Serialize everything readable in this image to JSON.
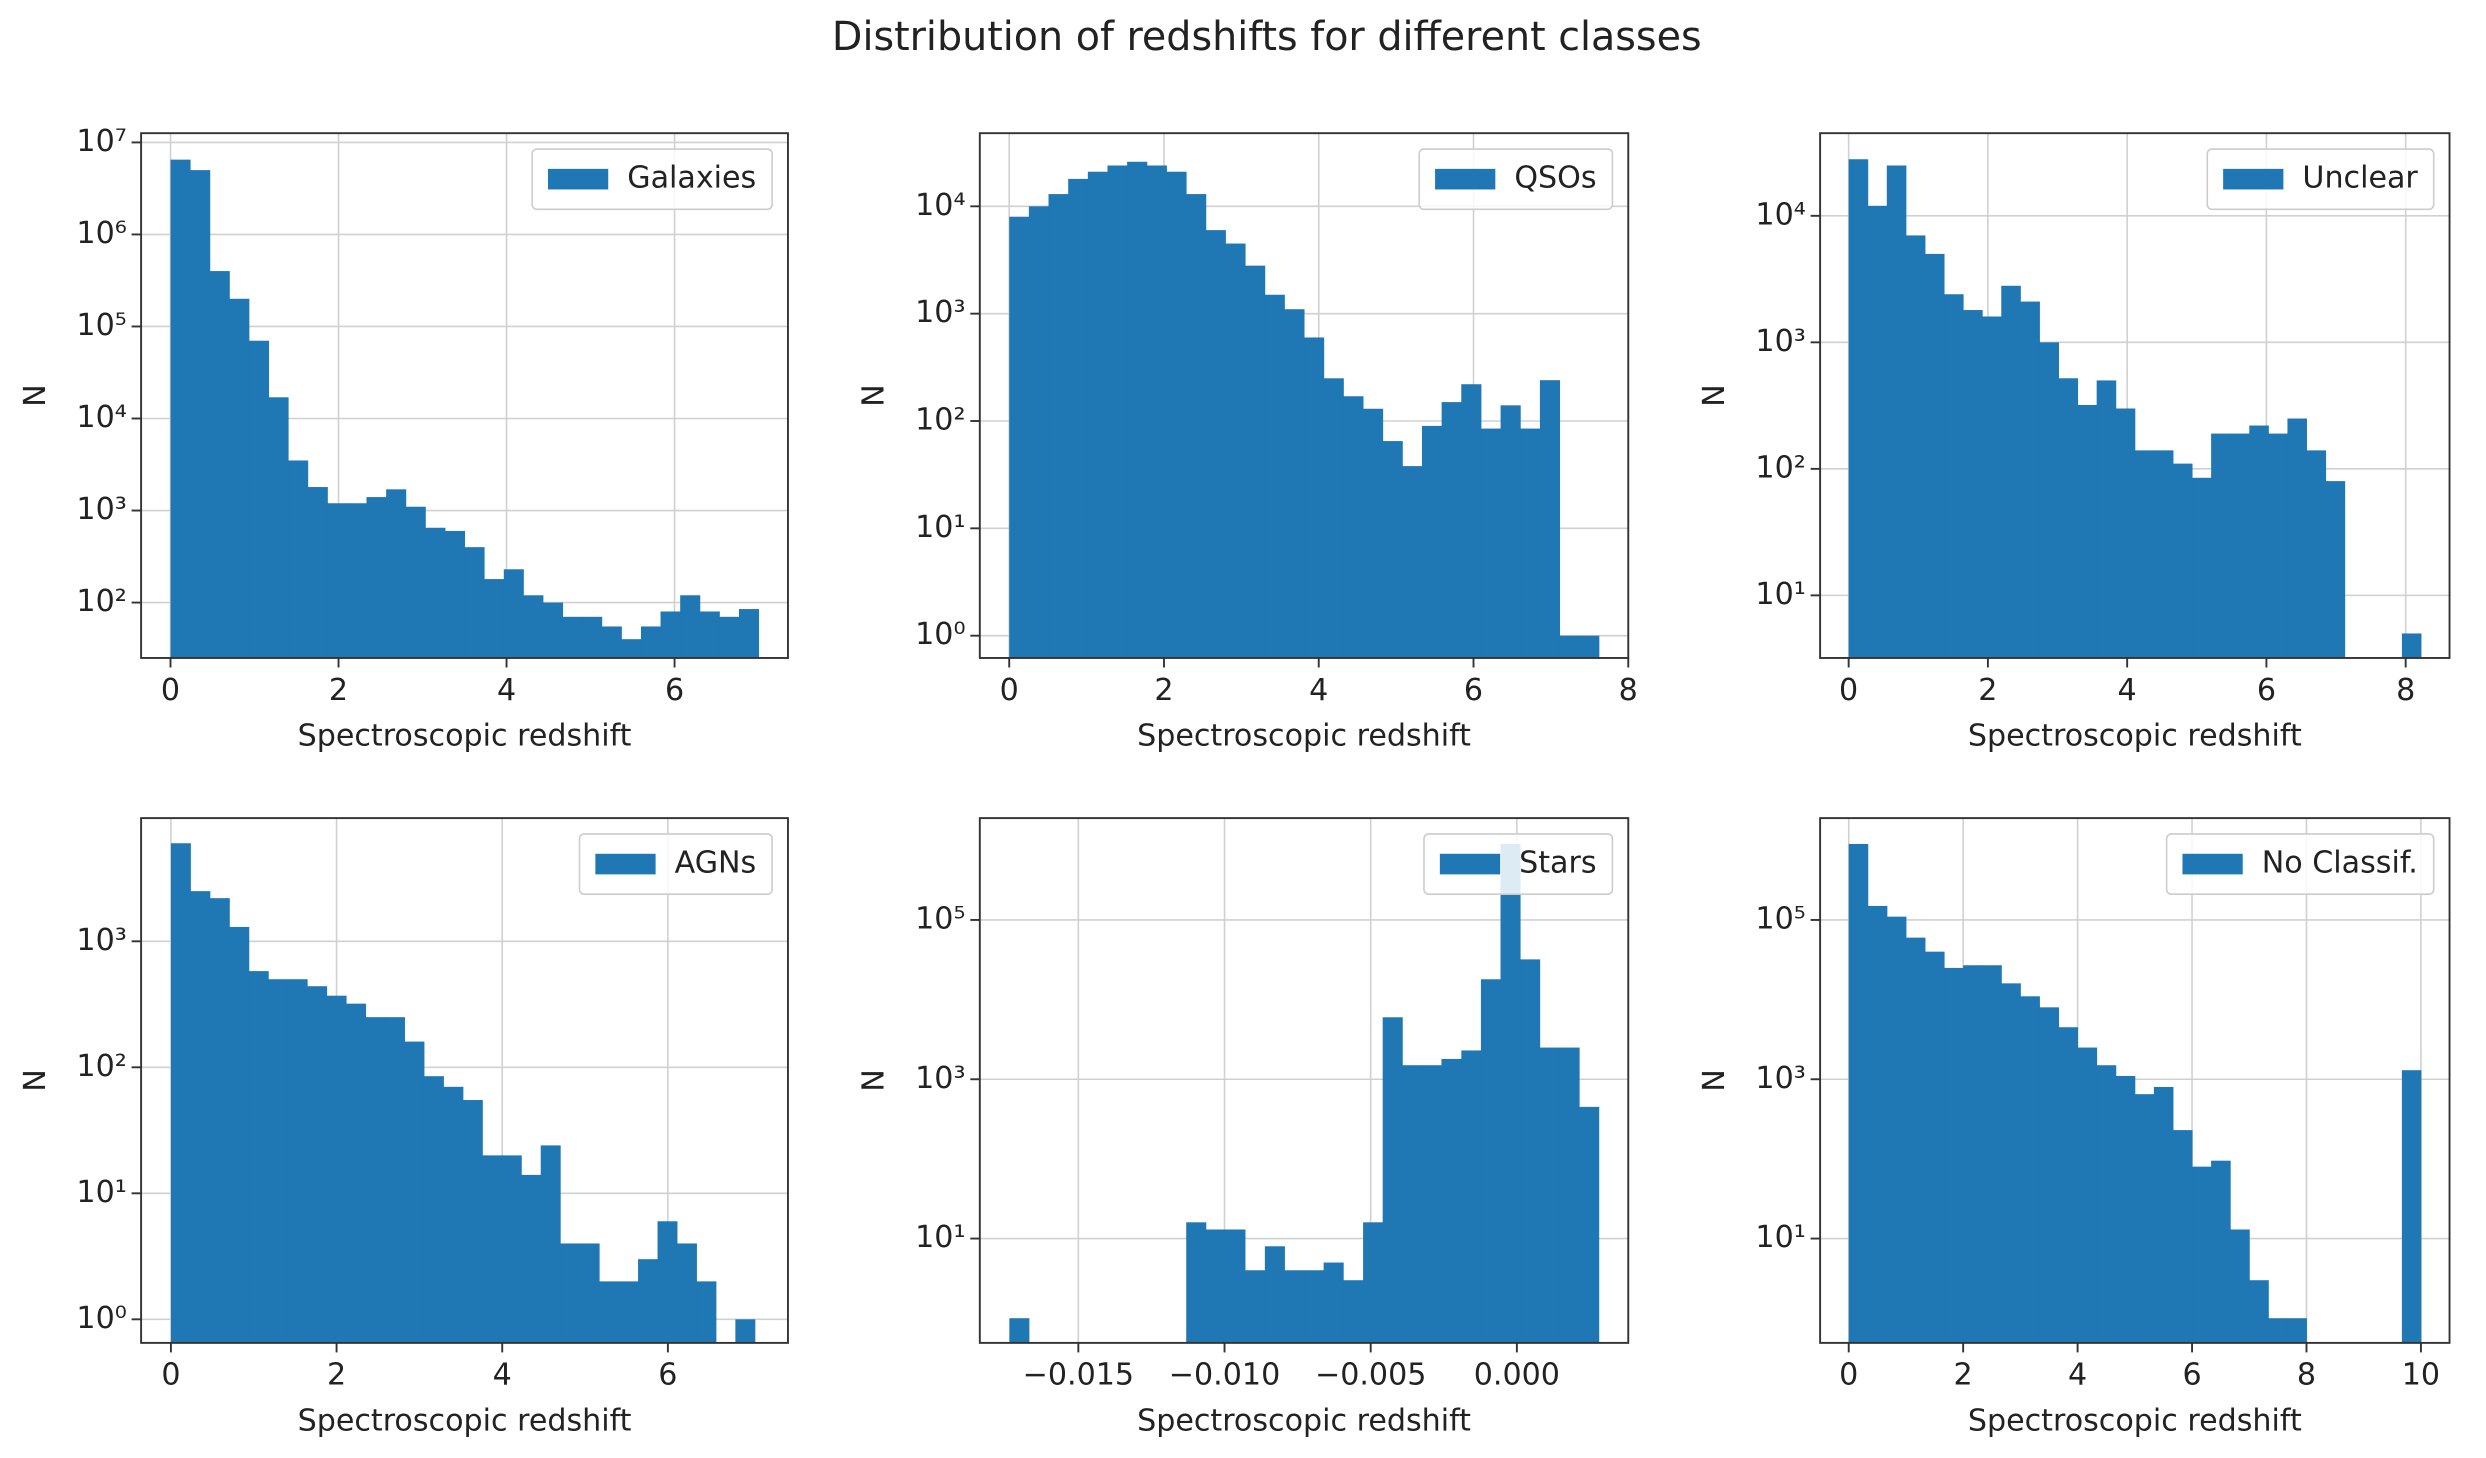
{
  "title": "Distribution of redshifts for different classes",
  "chart_data": [
    {
      "type": "histogram",
      "log_y": true,
      "grid": true,
      "legend": "upper right",
      "xlabel": "Spectroscopic redshift",
      "ylabel": "N",
      "bins": [
        0,
        0.233,
        0.467,
        0.7,
        0.933,
        1.167,
        1.4,
        1.633,
        1.867,
        2.1,
        2.333,
        2.567,
        2.8,
        3.033,
        3.267,
        3.5,
        3.733,
        3.967,
        4.2,
        4.433,
        4.667,
        4.9,
        5.133,
        5.367,
        5.6,
        5.833,
        6.067,
        6.3,
        6.533,
        6.767,
        7
      ],
      "series": [
        {
          "name": "Galaxies",
          "color": "#1f77b4",
          "values": [
            6500000,
            5000000,
            400000,
            200000,
            70000,
            17000,
            3500,
            1800,
            1200,
            1200,
            1400,
            1700,
            1100,
            650,
            600,
            400,
            180,
            230,
            120,
            100,
            70,
            70,
            55,
            40,
            55,
            80,
            120,
            80,
            70,
            85
          ]
        }
      ],
      "xlim": [
        -0.35,
        7.35
      ],
      "xticks": [
        0,
        2,
        4,
        6
      ],
      "ylim": [
        25,
        12600000
      ],
      "yticks": [
        {
          "value": 100,
          "label": "10²"
        },
        {
          "value": 1000,
          "label": "10³"
        },
        {
          "value": 10000,
          "label": "10⁴"
        },
        {
          "value": 100000,
          "label": "10⁵"
        },
        {
          "value": 1000000,
          "label": "10⁶"
        },
        {
          "value": 10000000,
          "label": "10⁷"
        }
      ]
    },
    {
      "type": "histogram",
      "log_y": true,
      "grid": true,
      "legend": "upper right",
      "xlabel": "Spectroscopic redshift",
      "ylabel": "N",
      "bins": [
        0,
        0.254,
        0.508,
        0.762,
        1.016,
        1.27,
        1.524,
        1.778,
        2.032,
        2.286,
        2.54,
        2.794,
        3.048,
        3.302,
        3.556,
        3.81,
        4.064,
        4.318,
        4.572,
        4.826,
        5.08,
        5.334,
        5.588,
        5.842,
        6.096,
        6.35,
        6.604,
        6.858,
        7.112,
        7.366,
        7.62
      ],
      "series": [
        {
          "name": "QSOs",
          "color": "#1f77b4",
          "values": [
            8000,
            10000,
            13000,
            18000,
            21000,
            24000,
            26000,
            24000,
            21000,
            13000,
            6000,
            4500,
            2800,
            1500,
            1100,
            600,
            250,
            170,
            130,
            65,
            38,
            90,
            150,
            220,
            85,
            140,
            85,
            240,
            1,
            1
          ]
        }
      ],
      "xlim": [
        -0.38,
        8.0
      ],
      "xticks": [
        0,
        2,
        4,
        6,
        8
      ],
      "ylim": [
        0.62,
        48000
      ],
      "yticks": [
        {
          "value": 1,
          "label": "10⁰"
        },
        {
          "value": 10,
          "label": "10¹"
        },
        {
          "value": 100,
          "label": "10²"
        },
        {
          "value": 1000,
          "label": "10³"
        },
        {
          "value": 10000,
          "label": "10⁴"
        }
      ]
    },
    {
      "type": "histogram",
      "log_y": true,
      "grid": true,
      "legend": "upper right",
      "xlabel": "Spectroscopic redshift",
      "ylabel": "N",
      "bins": [
        0,
        0.274,
        0.548,
        0.822,
        1.096,
        1.37,
        1.644,
        1.918,
        2.192,
        2.466,
        2.74,
        3.014,
        3.288,
        3.562,
        3.836,
        4.11,
        4.384,
        4.658,
        4.932,
        5.206,
        5.48,
        5.754,
        6.028,
        6.302,
        6.576,
        6.85,
        7.124,
        7.398,
        7.672,
        7.946,
        8.22
      ],
      "series": [
        {
          "name": "Unclear",
          "color": "#1f77b4",
          "values": [
            28000,
            12000,
            25000,
            7000,
            5000,
            2400,
            1800,
            1600,
            2800,
            2100,
            1000,
            520,
            320,
            500,
            300,
            140,
            140,
            110,
            85,
            190,
            190,
            220,
            190,
            250,
            140,
            80,
            0,
            0,
            0,
            5
          ]
        }
      ],
      "xlim": [
        -0.41,
        8.63
      ],
      "xticks": [
        0,
        2,
        4,
        6,
        8
      ],
      "ylim": [
        3.2,
        45000
      ],
      "yticks": [
        {
          "value": 10,
          "label": "10¹"
        },
        {
          "value": 100,
          "label": "10²"
        },
        {
          "value": 1000,
          "label": "10³"
        },
        {
          "value": 10000,
          "label": "10⁴"
        }
      ]
    },
    {
      "type": "histogram",
      "log_y": true,
      "grid": true,
      "legend": "upper right",
      "xlabel": "Spectroscopic redshift",
      "ylabel": "N",
      "bins": [
        0,
        0.235,
        0.47,
        0.705,
        0.94,
        1.175,
        1.41,
        1.645,
        1.88,
        2.115,
        2.35,
        2.585,
        2.82,
        3.055,
        3.29,
        3.525,
        3.76,
        3.995,
        4.23,
        4.465,
        4.7,
        4.935,
        5.17,
        5.405,
        5.64,
        5.875,
        6.11,
        6.345,
        6.58,
        6.815,
        7.05
      ],
      "series": [
        {
          "name": "AGNs",
          "color": "#1f77b4",
          "values": [
            6000,
            2500,
            2200,
            1300,
            580,
            500,
            500,
            440,
            370,
            320,
            250,
            250,
            160,
            85,
            70,
            55,
            20,
            20,
            14,
            24,
            4,
            4,
            2,
            2,
            3,
            6,
            4,
            2,
            0,
            1
          ]
        }
      ],
      "xlim": [
        -0.36,
        7.45
      ],
      "xticks": [
        0,
        2,
        4,
        6
      ],
      "ylim": [
        0.65,
        9500
      ],
      "yticks": [
        {
          "value": 1,
          "label": "10⁰"
        },
        {
          "value": 10,
          "label": "10¹"
        },
        {
          "value": 100,
          "label": "10²"
        },
        {
          "value": 1000,
          "label": "10³"
        }
      ]
    },
    {
      "type": "histogram",
      "log_y": true,
      "grid": true,
      "legend": "upper right",
      "xlabel": "Spectroscopic redshift",
      "ylabel": "N",
      "bins": [
        -0.01736,
        -0.01669,
        -0.01602,
        -0.01534,
        -0.01467,
        -0.014,
        -0.01333,
        -0.01266,
        -0.01198,
        -0.01131,
        -0.01064,
        -0.00997,
        -0.0093,
        -0.00862,
        -0.00795,
        -0.00728,
        -0.00661,
        -0.00594,
        -0.00526,
        -0.00459,
        -0.00392,
        -0.00325,
        -0.00258,
        -0.0019,
        -0.00123,
        -0.00056,
        0.00011,
        0.00078,
        0.00146,
        0.00213,
        0.0028
      ],
      "series": [
        {
          "name": "Stars",
          "color": "#1f77b4",
          "values": [
            1,
            0,
            0,
            0,
            0,
            0,
            0,
            0,
            0,
            16,
            13,
            13,
            4,
            8,
            4,
            4,
            5,
            3,
            16,
            6000,
            1500,
            1500,
            1800,
            2300,
            18000,
            900000,
            32000,
            2500,
            2500,
            450
          ]
        }
      ],
      "xlim": [
        -0.01837,
        0.00381
      ],
      "xticks": [
        {
          "value": -0.015,
          "label": "−0.015"
        },
        {
          "value": -0.01,
          "label": "−0.010"
        },
        {
          "value": -0.005,
          "label": "−0.005"
        },
        {
          "value": 0,
          "label": "0.000"
        }
      ],
      "ylim": [
        0.49,
        1900000
      ],
      "yticks": [
        {
          "value": 10,
          "label": "10¹"
        },
        {
          "value": 1000,
          "label": "10³"
        },
        {
          "value": 100000,
          "label": "10⁵"
        }
      ]
    },
    {
      "type": "histogram",
      "log_y": true,
      "grid": true,
      "legend": "upper right",
      "xlabel": "Spectroscopic redshift",
      "ylabel": "N",
      "bins": [
        0,
        0.333,
        0.667,
        1,
        1.333,
        1.667,
        2,
        2.333,
        2.667,
        3,
        3.333,
        3.667,
        4,
        4.333,
        4.667,
        5,
        5.333,
        5.667,
        6,
        6.333,
        6.667,
        7,
        7.333,
        7.667,
        8,
        8.333,
        8.667,
        9,
        9.333,
        9.667,
        10
      ],
      "series": [
        {
          "name": "No Classif.",
          "color": "#1f77b4",
          "values": [
            900000,
            150000,
            110000,
            60000,
            40000,
            25000,
            27000,
            27000,
            16000,
            11000,
            8000,
            4500,
            2500,
            1500,
            1100,
            650,
            800,
            230,
            80,
            95,
            13,
            3,
            1,
            1,
            0,
            0,
            0,
            0,
            0,
            1300
          ]
        }
      ],
      "xlim": [
        -0.5,
        10.5
      ],
      "xticks": [
        0,
        2,
        4,
        6,
        8,
        10
      ],
      "ylim": [
        0.49,
        1900000
      ],
      "yticks": [
        {
          "value": 10,
          "label": "10¹"
        },
        {
          "value": 1000,
          "label": "10³"
        },
        {
          "value": 100000,
          "label": "10⁵"
        }
      ]
    }
  ]
}
